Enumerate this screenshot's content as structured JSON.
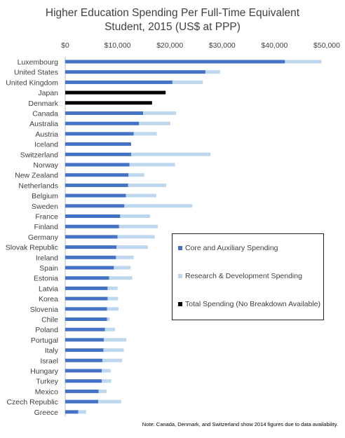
{
  "chart_data": {
    "type": "bar",
    "orientation": "horizontal",
    "stacked": true,
    "title_lines": [
      "Higher Education Spending Per Full-Time Equivalent",
      "Student, 2015 (US$ at PPP)"
    ],
    "x_ticks": [
      "$0",
      "$10,000",
      "$20,000",
      "$30,000",
      "$40,000",
      "$50,000"
    ],
    "xlim": [
      0,
      50000
    ],
    "x_axis_position": "top",
    "grid": false,
    "legend_position": "right-middle",
    "colors": {
      "core": "#4472c4",
      "rnd": "#bdd7ee",
      "total": "#000000"
    },
    "categories": [
      "Luxembourg",
      "United States",
      "United Kingdom",
      "Japan",
      "Denmark",
      "Canada",
      "Australia",
      "Austria",
      "Iceland",
      "Switzerland",
      "Norway",
      "New Zealand",
      "Netherlands",
      "Belgium",
      "Sweden",
      "France",
      "Finland",
      "Germany",
      "Slovak Republic",
      "Ireland",
      "Spain",
      "Estonia",
      "Latvia",
      "Korea",
      "Slovenia",
      "Chile",
      "Poland",
      "Portugal",
      "Italy",
      "Israel",
      "Hungary",
      "Turkey",
      "Mexico",
      "Czech Republic",
      "Greece"
    ],
    "series": [
      {
        "name": "Core and Auxiliary Spending",
        "key": "core",
        "values": [
          42000,
          26800,
          20500,
          null,
          null,
          14900,
          14100,
          13100,
          12600,
          12600,
          12300,
          12100,
          12000,
          11600,
          11300,
          10500,
          10300,
          10000,
          9800,
          9700,
          9300,
          8400,
          8100,
          8100,
          8000,
          8000,
          7600,
          7400,
          7300,
          7100,
          7000,
          7000,
          6400,
          6300,
          2500
        ]
      },
      {
        "name": "Research & Development Spending",
        "key": "rnd",
        "values": [
          7000,
          2800,
          5800,
          null,
          null,
          6300,
          6000,
          4400,
          0,
          15200,
          8700,
          3000,
          7300,
          5800,
          13000,
          5700,
          7400,
          7100,
          6000,
          3400,
          3200,
          4400,
          1900,
          2000,
          2200,
          500,
          1900,
          4300,
          3900,
          3800,
          1700,
          1800,
          1500,
          4400,
          1500
        ]
      },
      {
        "name": "Total Spending (No Breakdown Available)",
        "key": "total",
        "values": [
          null,
          null,
          null,
          19200,
          16600,
          null,
          null,
          null,
          null,
          null,
          null,
          null,
          null,
          null,
          null,
          null,
          null,
          null,
          null,
          null,
          null,
          null,
          null,
          null,
          null,
          null,
          null,
          null,
          null,
          null,
          null,
          null,
          null,
          null,
          null
        ]
      }
    ]
  },
  "note": "Note: Canada, Denmark, and Switzerland show 2014 figures due to data availability."
}
